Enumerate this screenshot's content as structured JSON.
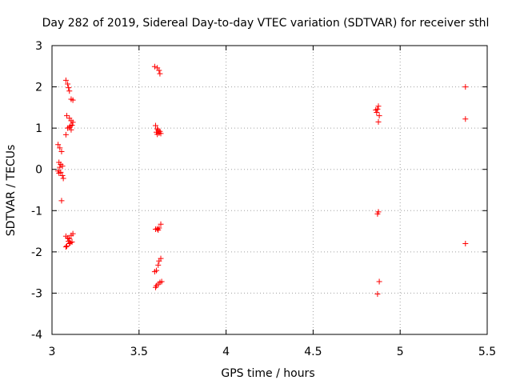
{
  "chart_data": {
    "type": "scatter",
    "title": "Day 282 of 2019, Sidereal Day-to-day VTEC variation (SDTVAR) for receiver sthl",
    "xlabel": "GPS time / hours",
    "ylabel": "SDTVAR / TECUs",
    "xlim": [
      3,
      5.5
    ],
    "ylim": [
      -4,
      3
    ],
    "x_ticks": [
      "3",
      "3.5",
      "4",
      "4.5",
      "5",
      "5.5"
    ],
    "x_tick_values": [
      3,
      3.5,
      4,
      4.5,
      5,
      5.5
    ],
    "y_ticks": [
      "3",
      "2",
      "1",
      "0",
      "-1",
      "-2",
      "-3",
      "-4"
    ],
    "y_tick_values": [
      3,
      2,
      1,
      0,
      -1,
      -2,
      -3,
      -4
    ],
    "grid": true,
    "marker": "plus",
    "color": "#ff0000",
    "points": [
      [
        3.035,
        0.6
      ],
      [
        3.045,
        0.52
      ],
      [
        3.055,
        0.43
      ],
      [
        3.04,
        0.17
      ],
      [
        3.05,
        0.12
      ],
      [
        3.06,
        0.08
      ],
      [
        3.045,
        0.05
      ],
      [
        3.035,
        -0.04
      ],
      [
        3.05,
        -0.07
      ],
      [
        3.04,
        -0.09
      ],
      [
        3.06,
        -0.15
      ],
      [
        3.065,
        -0.22
      ],
      [
        3.055,
        -0.76
      ],
      [
        3.08,
        2.16
      ],
      [
        3.09,
        2.07
      ],
      [
        3.095,
        1.98
      ],
      [
        3.1,
        1.9
      ],
      [
        3.11,
        1.7
      ],
      [
        3.12,
        1.68
      ],
      [
        3.085,
        1.3
      ],
      [
        3.1,
        1.24
      ],
      [
        3.11,
        1.18
      ],
      [
        3.12,
        1.14
      ],
      [
        3.09,
        1.0
      ],
      [
        3.1,
        1.02
      ],
      [
        3.105,
        1.05
      ],
      [
        3.115,
        1.07
      ],
      [
        3.11,
        0.96
      ],
      [
        3.08,
        0.84
      ],
      [
        3.08,
        -1.62
      ],
      [
        3.09,
        -1.66
      ],
      [
        3.1,
        -1.68
      ],
      [
        3.11,
        -1.6
      ],
      [
        3.12,
        -1.56
      ],
      [
        3.095,
        -1.74
      ],
      [
        3.105,
        -1.78
      ],
      [
        3.115,
        -1.76
      ],
      [
        3.1,
        -1.8
      ],
      [
        3.085,
        -1.86
      ],
      [
        3.08,
        -1.88
      ],
      [
        3.59,
        2.49
      ],
      [
        3.605,
        2.46
      ],
      [
        3.615,
        2.4
      ],
      [
        3.62,
        2.32
      ],
      [
        3.595,
        1.06
      ],
      [
        3.605,
        0.98
      ],
      [
        3.61,
        0.95
      ],
      [
        3.62,
        0.92
      ],
      [
        3.615,
        0.88
      ],
      [
        3.605,
        0.85
      ],
      [
        3.6,
        0.9
      ],
      [
        3.625,
        0.87
      ],
      [
        3.595,
        -1.45
      ],
      [
        3.605,
        -1.44
      ],
      [
        3.615,
        -1.42
      ],
      [
        3.625,
        -1.33
      ],
      [
        3.61,
        -1.47
      ],
      [
        3.625,
        -2.16
      ],
      [
        3.615,
        -2.22
      ],
      [
        3.61,
        -2.32
      ],
      [
        3.6,
        -2.45
      ],
      [
        3.59,
        -2.48
      ],
      [
        3.63,
        -2.72
      ],
      [
        3.62,
        -2.74
      ],
      [
        3.61,
        -2.78
      ],
      [
        3.6,
        -2.82
      ],
      [
        3.595,
        -2.86
      ],
      [
        4.86,
        1.44
      ],
      [
        4.87,
        1.46
      ],
      [
        4.875,
        1.53
      ],
      [
        4.865,
        1.38
      ],
      [
        4.88,
        1.3
      ],
      [
        4.875,
        1.15
      ],
      [
        4.87,
        -1.08
      ],
      [
        4.875,
        -1.03
      ],
      [
        4.88,
        -2.72
      ],
      [
        4.87,
        -3.02
      ],
      [
        5.375,
        2.0
      ],
      [
        5.375,
        1.22
      ],
      [
        5.375,
        -1.8
      ]
    ]
  }
}
